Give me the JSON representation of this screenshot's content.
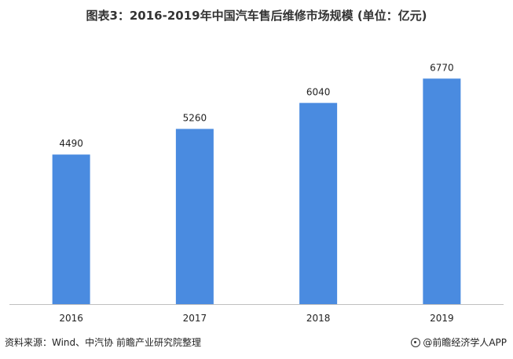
{
  "title": "图表3：2016-2019年中国汽车售后维修市场规模 (单位：亿元)",
  "chart_data": {
    "type": "bar",
    "title": "图表3：2016-2019年中国汽车售后维修市场规模 (单位：亿元)",
    "categories": [
      "2016",
      "2017",
      "2018",
      "2019"
    ],
    "values": [
      4490,
      5260,
      6040,
      6770
    ],
    "data_labels": [
      "4490",
      "5260",
      "6040",
      "6770"
    ],
    "xlabel": "",
    "ylabel": "",
    "ylim": [
      0,
      8000
    ],
    "grid": false,
    "legend": "none",
    "bar_color": "#4a8be0",
    "axis_color": "#bfbfbf"
  },
  "footer": {
    "source": "资料来源：Wind、中汽协 前瞻产业研究院整理",
    "brand": "@前瞻经济学人APP"
  }
}
